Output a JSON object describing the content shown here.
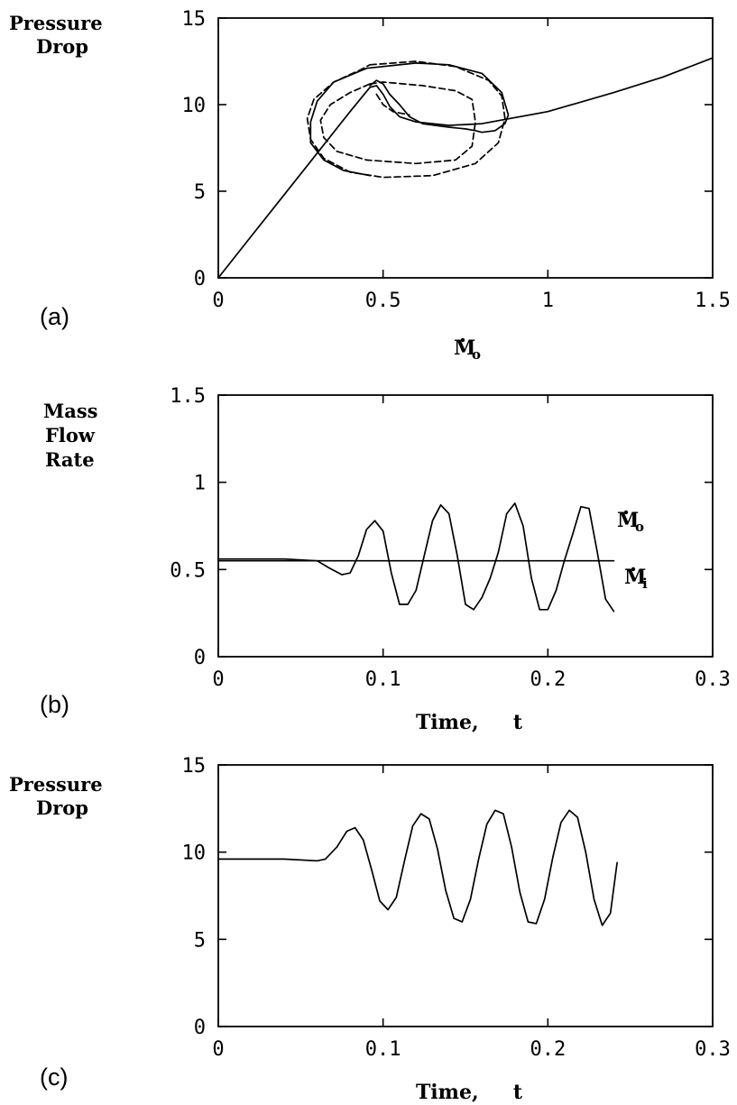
{
  "chart_data": [
    {
      "panel_label": "(a)",
      "type": "line",
      "ylabel_lines": [
        "Pressure",
        "Drop"
      ],
      "xlabel": {
        "symbol": "M",
        "subscript": "o",
        "dot": true
      },
      "xlim": [
        0,
        1.5
      ],
      "ylim": [
        0,
        15
      ],
      "xticks": [
        0,
        0.5,
        1,
        1.5
      ],
      "xtick_labels": [
        "0",
        "0.5",
        "1",
        "1.5"
      ],
      "yticks": [
        0,
        5,
        10,
        15
      ],
      "ytick_labels": [
        "0",
        "5",
        "10",
        "15"
      ],
      "series": [
        {
          "style": "solid",
          "x": [
            0,
            0.1,
            0.2,
            0.3,
            0.4,
            0.46,
            0.48,
            0.5,
            0.52,
            0.55,
            0.6,
            0.7,
            0.8,
            1.0,
            1.2,
            1.35,
            1.5
          ],
          "y": [
            0,
            2.4,
            4.8,
            7.2,
            9.6,
            11.0,
            11.1,
            10.6,
            9.9,
            9.3,
            9.0,
            8.8,
            8.9,
            9.6,
            10.7,
            11.6,
            12.7
          ]
        },
        {
          "style": "solid",
          "x": [
            0.46,
            0.48,
            0.5,
            0.52,
            0.55,
            0.58,
            0.62,
            0.7,
            0.75,
            0.78,
            0.8,
            0.84,
            0.87,
            0.88,
            0.86,
            0.8,
            0.7,
            0.6,
            0.45,
            0.35,
            0.3,
            0.28,
            0.28,
            0.32,
            0.38,
            0.46
          ],
          "y": [
            11.1,
            11.4,
            11.2,
            10.6,
            10.0,
            9.3,
            8.9,
            8.7,
            8.6,
            8.5,
            8.4,
            8.5,
            8.9,
            9.4,
            10.7,
            11.8,
            12.3,
            12.4,
            12.1,
            11.3,
            10.2,
            9.0,
            7.8,
            6.8,
            6.2,
            5.9
          ]
        },
        {
          "style": "dashed",
          "x": [
            0.46,
            0.6,
            0.72,
            0.82,
            0.86,
            0.87,
            0.85,
            0.78,
            0.65,
            0.5,
            0.4,
            0.32,
            0.28,
            0.27,
            0.29,
            0.35,
            0.43,
            0.46
          ],
          "y": [
            12.3,
            12.5,
            12.2,
            11.4,
            10.5,
            9.2,
            7.8,
            6.6,
            5.9,
            5.8,
            6.1,
            6.9,
            8.0,
            9.2,
            10.3,
            11.3,
            12.0,
            12.3
          ]
        },
        {
          "style": "dashed",
          "x": [
            0.46,
            0.5,
            0.62,
            0.72,
            0.77,
            0.78,
            0.77,
            0.72,
            0.6,
            0.45,
            0.36,
            0.32,
            0.31,
            0.34,
            0.4,
            0.46
          ],
          "y": [
            11.2,
            11.3,
            11.1,
            10.8,
            10.3,
            9.0,
            7.6,
            6.8,
            6.6,
            6.8,
            7.3,
            8.1,
            9.1,
            10.0,
            10.7,
            11.2
          ]
        },
        {
          "style": "dashed",
          "x": [
            0.48,
            0.5,
            0.53,
            0.58
          ],
          "y": [
            10.6,
            10.0,
            9.6,
            9.4
          ]
        }
      ]
    },
    {
      "panel_label": "(b)",
      "type": "line",
      "ylabel_lines": [
        "Mass",
        "Flow",
        "Rate"
      ],
      "xlabel": "Time,     t",
      "xlim": [
        0,
        0.3
      ],
      "ylim": [
        0,
        1.5
      ],
      "xticks": [
        0,
        0.1,
        0.2,
        0.3
      ],
      "xtick_labels": [
        "0",
        "0.1",
        "0.2",
        "0.3"
      ],
      "yticks": [
        0,
        0.5,
        1,
        1.5
      ],
      "ytick_labels": [
        "0",
        "0.5",
        "1",
        "1.5"
      ],
      "series": [
        {
          "name": "Mo",
          "label_symbol": "M",
          "label_subscript": "o",
          "style": "solid",
          "x": [
            0,
            0.04,
            0.06,
            0.067,
            0.075,
            0.08,
            0.085,
            0.09,
            0.095,
            0.1,
            0.105,
            0.11,
            0.115,
            0.12,
            0.125,
            0.13,
            0.135,
            0.14,
            0.145,
            0.15,
            0.155,
            0.16,
            0.165,
            0.17,
            0.175,
            0.18,
            0.185,
            0.19,
            0.195,
            0.2,
            0.205,
            0.21,
            0.215,
            0.22,
            0.225,
            0.23,
            0.235,
            0.24
          ],
          "y": [
            0.56,
            0.56,
            0.55,
            0.51,
            0.47,
            0.48,
            0.58,
            0.73,
            0.78,
            0.72,
            0.48,
            0.3,
            0.3,
            0.38,
            0.58,
            0.78,
            0.87,
            0.82,
            0.58,
            0.3,
            0.27,
            0.34,
            0.45,
            0.6,
            0.82,
            0.88,
            0.75,
            0.45,
            0.27,
            0.27,
            0.38,
            0.55,
            0.7,
            0.86,
            0.85,
            0.6,
            0.33,
            0.26
          ]
        },
        {
          "name": "Mi",
          "label_symbol": "M",
          "label_subscript": "i",
          "style": "solid",
          "x": [
            0,
            0.24
          ],
          "y": [
            0.55,
            0.55
          ]
        }
      ]
    },
    {
      "panel_label": "(c)",
      "type": "line",
      "ylabel_lines": [
        "Pressure",
        "Drop"
      ],
      "xlabel": "Time,     t",
      "xlim": [
        0,
        0.3
      ],
      "ylim": [
        0,
        15
      ],
      "xticks": [
        0,
        0.1,
        0.2,
        0.3
      ],
      "xtick_labels": [
        "0",
        "0.1",
        "0.2",
        "0.3"
      ],
      "yticks": [
        0,
        5,
        10,
        15
      ],
      "ytick_labels": [
        "0",
        "5",
        "10",
        "15"
      ],
      "series": [
        {
          "style": "solid",
          "x": [
            0,
            0.04,
            0.06,
            0.065,
            0.072,
            0.078,
            0.083,
            0.088,
            0.093,
            0.098,
            0.103,
            0.108,
            0.113,
            0.118,
            0.123,
            0.128,
            0.133,
            0.138,
            0.143,
            0.148,
            0.153,
            0.158,
            0.163,
            0.168,
            0.173,
            0.178,
            0.183,
            0.188,
            0.193,
            0.198,
            0.203,
            0.208,
            0.213,
            0.218,
            0.223,
            0.228,
            0.233,
            0.238,
            0.242
          ],
          "y": [
            9.6,
            9.6,
            9.5,
            9.6,
            10.3,
            11.2,
            11.4,
            10.7,
            9.0,
            7.2,
            6.7,
            7.4,
            9.5,
            11.5,
            12.2,
            11.9,
            10.2,
            7.8,
            6.2,
            6.0,
            7.3,
            9.6,
            11.6,
            12.4,
            12.2,
            10.3,
            7.7,
            6.0,
            5.9,
            7.3,
            9.7,
            11.7,
            12.4,
            12.0,
            10.0,
            7.3,
            5.8,
            6.5,
            9.4
          ]
        }
      ]
    }
  ]
}
